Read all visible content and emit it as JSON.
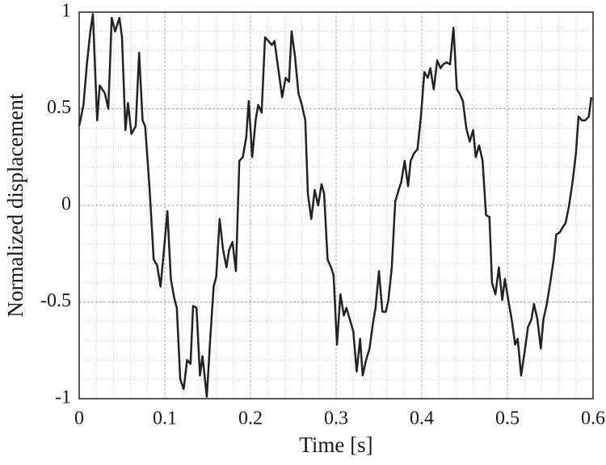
{
  "chart_data": {
    "type": "line",
    "x_label": "Time [s]",
    "y_label": "Normalized displacement",
    "xlim": [
      0,
      0.6
    ],
    "ylim": [
      -1,
      1
    ],
    "xticks": [
      0,
      0.1,
      0.2,
      0.3,
      0.4,
      0.5,
      0.6
    ],
    "yticks": [
      -1,
      -0.5,
      0,
      0.5,
      1
    ],
    "grid": true,
    "minor_grid": true,
    "series": [
      {
        "color": "#222222",
        "x": [
          0,
          0.005,
          0.009,
          0.013,
          0.016,
          0.021,
          0.024,
          0.03,
          0.034,
          0.038,
          0.042,
          0.047,
          0.05,
          0.054,
          0.057,
          0.061,
          0.066,
          0.07,
          0.074,
          0.077,
          0.082,
          0.087,
          0.091,
          0.095,
          0.099,
          0.103,
          0.107,
          0.111,
          0.114,
          0.118,
          0.122,
          0.126,
          0.13,
          0.133,
          0.137,
          0.141,
          0.144,
          0.149,
          0.153,
          0.157,
          0.16,
          0.164,
          0.168,
          0.172,
          0.175,
          0.179,
          0.183,
          0.187,
          0.191,
          0.195,
          0.198,
          0.202,
          0.206,
          0.209,
          0.213,
          0.217,
          0.221,
          0.225,
          0.228,
          0.233,
          0.237,
          0.241,
          0.245,
          0.248,
          0.252,
          0.256,
          0.26,
          0.264,
          0.267,
          0.271,
          0.275,
          0.279,
          0.283,
          0.286,
          0.29,
          0.294,
          0.297,
          0.301,
          0.305,
          0.309,
          0.312,
          0.316,
          0.32,
          0.324,
          0.328,
          0.331,
          0.335,
          0.339,
          0.343,
          0.346,
          0.35,
          0.354,
          0.358,
          0.361,
          0.365,
          0.369,
          0.373,
          0.376,
          0.38,
          0.384,
          0.387,
          0.391,
          0.395,
          0.399,
          0.403,
          0.407,
          0.41,
          0.414,
          0.418,
          0.422,
          0.425,
          0.429,
          0.433,
          0.437,
          0.441,
          0.444,
          0.448,
          0.452,
          0.456,
          0.46,
          0.463,
          0.467,
          0.471,
          0.475,
          0.479,
          0.482,
          0.486,
          0.49,
          0.494,
          0.497,
          0.501,
          0.505,
          0.509,
          0.512,
          0.516,
          0.52,
          0.524,
          0.528,
          0.531,
          0.535,
          0.539,
          0.542,
          0.546,
          0.55,
          0.554,
          0.557,
          0.561,
          0.565,
          0.568,
          0.572,
          0.576,
          0.58,
          0.583,
          0.587,
          0.591,
          0.595,
          0.598
        ],
        "values": [
          0.41,
          0.52,
          0.73,
          0.9,
          0.99,
          0.44,
          0.62,
          0.58,
          0.5,
          0.97,
          0.9,
          0.97,
          0.87,
          0.39,
          0.53,
          0.37,
          0.41,
          0.79,
          0.44,
          0.41,
          0.1,
          -0.28,
          -0.31,
          -0.42,
          -0.23,
          -0.03,
          -0.38,
          -0.48,
          -0.53,
          -0.9,
          -0.95,
          -0.8,
          -0.82,
          -0.52,
          -0.53,
          -0.88,
          -0.78,
          -0.99,
          -0.69,
          -0.42,
          -0.37,
          -0.07,
          -0.23,
          -0.32,
          -0.23,
          -0.19,
          -0.34,
          0.23,
          0.25,
          0.35,
          0.54,
          0.25,
          0.44,
          0.52,
          0.48,
          0.87,
          0.85,
          0.83,
          0.85,
          0.69,
          0.56,
          0.66,
          0.64,
          0.9,
          0.77,
          0.58,
          0.52,
          0.44,
          0.06,
          -0.07,
          0.08,
          0.0,
          0.11,
          0.06,
          -0.28,
          -0.32,
          -0.36,
          -0.72,
          -0.46,
          -0.57,
          -0.53,
          -0.59,
          -0.65,
          -0.86,
          -0.69,
          -0.88,
          -0.8,
          -0.74,
          -0.61,
          -0.53,
          -0.34,
          -0.55,
          -0.55,
          -0.49,
          -0.32,
          0.02,
          0.08,
          0.12,
          0.23,
          0.1,
          0.23,
          0.27,
          0.29,
          0.46,
          0.69,
          0.66,
          0.71,
          0.6,
          0.75,
          0.71,
          0.73,
          0.74,
          0.73,
          0.92,
          0.6,
          0.58,
          0.54,
          0.4,
          0.33,
          0.39,
          0.25,
          0.31,
          0.23,
          -0.05,
          -0.06,
          -0.4,
          -0.46,
          -0.32,
          -0.49,
          -0.38,
          -0.49,
          -0.59,
          -0.72,
          -0.69,
          -0.88,
          -0.76,
          -0.63,
          -0.59,
          -0.51,
          -0.59,
          -0.74,
          -0.59,
          -0.51,
          -0.4,
          -0.28,
          -0.15,
          -0.14,
          -0.11,
          -0.09,
          0.0,
          0.12,
          0.27,
          0.46,
          0.44,
          0.44,
          0.46,
          0.56
        ]
      }
    ]
  }
}
